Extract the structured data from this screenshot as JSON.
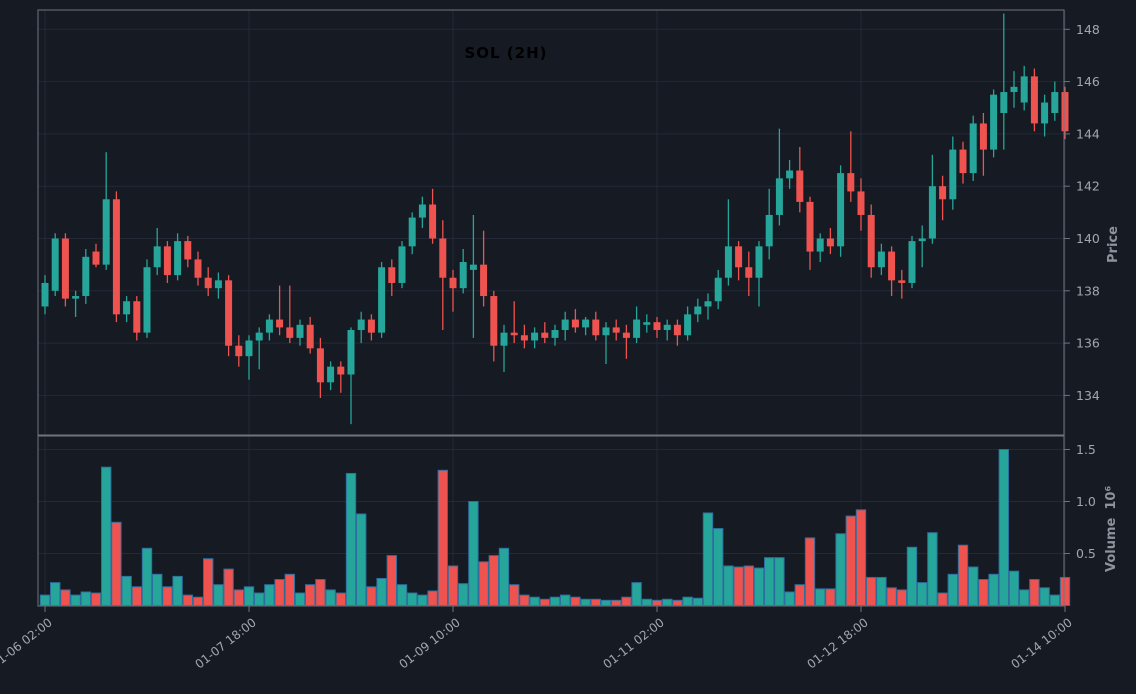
{
  "title": "SOL (2H)",
  "chart_data": {
    "type": "candlestick",
    "symbol": "SOL",
    "timeframe": "2H",
    "title": "SOL (2H)",
    "legend_position": "none",
    "grid": true,
    "price_axis": {
      "label": "Price",
      "side": "right",
      "ticks": [
        134,
        136,
        138,
        140,
        142,
        144,
        146,
        148
      ],
      "range": [
        132.5,
        148.75
      ]
    },
    "volume_axis": {
      "label": "Volume",
      "scale": "10⁶",
      "side": "right",
      "ticks": [
        "0.5",
        "1.0",
        "1.5"
      ],
      "tick_values": [
        0.5,
        1.0,
        1.5
      ],
      "range": [
        0,
        1.63
      ]
    },
    "x_ticks": [
      {
        "label": "01-06 02:00",
        "index": 0
      },
      {
        "label": "01-07 18:00",
        "index": 20
      },
      {
        "label": "01-09 10:00",
        "index": 40
      },
      {
        "label": "01-11 02:00",
        "index": 60
      },
      {
        "label": "01-12 18:00",
        "index": 80
      },
      {
        "label": "01-14 10:00",
        "index": 100
      }
    ],
    "interval_hours": 2,
    "volume_unit": 1000000,
    "colors": {
      "up": "#26a69a",
      "down": "#ef5350",
      "volume_edge": "#2e6f9f",
      "background": "#151a23",
      "grid": "#232937",
      "spine": "#6e747d",
      "tick_text": "#a2a7af",
      "title_text": "#000000",
      "axis_label_text": "#8d939c"
    },
    "candles_format": [
      "open",
      "high",
      "low",
      "close",
      "volume_millions"
    ],
    "candles": [
      [
        137.4,
        138.6,
        137.1,
        138.3,
        0.1
      ],
      [
        138.0,
        140.2,
        137.8,
        140.0,
        0.22
      ],
      [
        140.0,
        140.2,
        137.4,
        137.7,
        0.15
      ],
      [
        137.7,
        138.0,
        137.0,
        137.8,
        0.1
      ],
      [
        137.8,
        139.6,
        137.5,
        139.3,
        0.13
      ],
      [
        139.5,
        139.8,
        138.9,
        139.0,
        0.12
      ],
      [
        139.0,
        143.3,
        138.8,
        141.5,
        1.33
      ],
      [
        141.5,
        141.8,
        136.8,
        137.1,
        0.8
      ],
      [
        137.1,
        137.8,
        136.8,
        137.6,
        0.28
      ],
      [
        137.6,
        137.8,
        136.1,
        136.4,
        0.18
      ],
      [
        136.4,
        139.2,
        136.2,
        138.9,
        0.55
      ],
      [
        138.9,
        140.4,
        138.6,
        139.7,
        0.3
      ],
      [
        139.7,
        139.9,
        138.3,
        138.6,
        0.18
      ],
      [
        138.6,
        140.2,
        138.4,
        139.9,
        0.28
      ],
      [
        139.9,
        140.1,
        138.9,
        139.2,
        0.1
      ],
      [
        139.2,
        139.5,
        138.2,
        138.5,
        0.08
      ],
      [
        138.5,
        138.9,
        137.8,
        138.1,
        0.45
      ],
      [
        138.1,
        138.7,
        137.7,
        138.4,
        0.2
      ],
      [
        138.4,
        138.6,
        135.5,
        135.9,
        0.35
      ],
      [
        135.9,
        136.3,
        135.1,
        135.5,
        0.15
      ],
      [
        135.5,
        136.3,
        134.6,
        136.1,
        0.18
      ],
      [
        136.1,
        136.6,
        135.0,
        136.4,
        0.12
      ],
      [
        136.4,
        137.1,
        136.1,
        136.9,
        0.2
      ],
      [
        136.9,
        138.2,
        136.3,
        136.6,
        0.25
      ],
      [
        136.6,
        138.2,
        136.0,
        136.2,
        0.3
      ],
      [
        136.2,
        136.9,
        135.9,
        136.7,
        0.12
      ],
      [
        136.7,
        137.0,
        135.6,
        135.8,
        0.2
      ],
      [
        135.8,
        136.2,
        133.9,
        134.5,
        0.25
      ],
      [
        134.5,
        135.3,
        134.2,
        135.1,
        0.15
      ],
      [
        135.1,
        135.3,
        134.1,
        134.8,
        0.12
      ],
      [
        134.8,
        136.6,
        132.9,
        136.5,
        1.27
      ],
      [
        136.5,
        137.2,
        136.0,
        136.9,
        0.88
      ],
      [
        136.9,
        137.1,
        136.1,
        136.4,
        0.18
      ],
      [
        136.4,
        139.1,
        136.2,
        138.9,
        0.26
      ],
      [
        138.9,
        139.2,
        137.8,
        138.3,
        0.48
      ],
      [
        138.3,
        139.9,
        138.1,
        139.7,
        0.2
      ],
      [
        139.7,
        141.0,
        139.4,
        140.8,
        0.12
      ],
      [
        140.8,
        141.6,
        140.4,
        141.3,
        0.1
      ],
      [
        141.3,
        141.9,
        139.8,
        140.0,
        0.14
      ],
      [
        140.0,
        140.7,
        136.5,
        138.5,
        1.3
      ],
      [
        138.5,
        138.8,
        137.2,
        138.1,
        0.38
      ],
      [
        138.1,
        139.6,
        137.9,
        139.1,
        0.21
      ],
      [
        138.8,
        140.9,
        136.2,
        139.0,
        1.0
      ],
      [
        139.0,
        140.3,
        137.4,
        137.8,
        0.42
      ],
      [
        137.8,
        138.0,
        135.3,
        135.9,
        0.48
      ],
      [
        135.9,
        136.7,
        134.9,
        136.4,
        0.55
      ],
      [
        136.4,
        137.6,
        136.0,
        136.3,
        0.2
      ],
      [
        136.3,
        136.7,
        135.8,
        136.1,
        0.1
      ],
      [
        136.1,
        136.6,
        135.8,
        136.4,
        0.08
      ],
      [
        136.4,
        136.8,
        136.0,
        136.2,
        0.06
      ],
      [
        136.2,
        136.7,
        135.9,
        136.5,
        0.08
      ],
      [
        136.5,
        137.2,
        136.1,
        136.9,
        0.1
      ],
      [
        136.9,
        137.3,
        136.4,
        136.6,
        0.08
      ],
      [
        136.6,
        137.0,
        136.3,
        136.9,
        0.06
      ],
      [
        136.9,
        137.2,
        136.1,
        136.3,
        0.06
      ],
      [
        136.3,
        136.8,
        135.2,
        136.6,
        0.05
      ],
      [
        136.6,
        136.9,
        136.1,
        136.4,
        0.05
      ],
      [
        136.4,
        136.7,
        135.4,
        136.2,
        0.08
      ],
      [
        136.2,
        137.4,
        136.0,
        136.9,
        0.22
      ],
      [
        136.7,
        137.1,
        136.4,
        136.8,
        0.06
      ],
      [
        136.8,
        137.0,
        136.2,
        136.5,
        0.05
      ],
      [
        136.5,
        136.9,
        136.1,
        136.7,
        0.06
      ],
      [
        136.7,
        136.9,
        135.9,
        136.3,
        0.05
      ],
      [
        136.3,
        137.4,
        136.1,
        137.1,
        0.08
      ],
      [
        137.1,
        137.7,
        136.8,
        137.4,
        0.07
      ],
      [
        137.4,
        137.9,
        136.9,
        137.6,
        0.89
      ],
      [
        137.6,
        138.8,
        137.3,
        138.5,
        0.74
      ],
      [
        138.5,
        141.5,
        138.2,
        139.7,
        0.38
      ],
      [
        139.7,
        139.9,
        138.4,
        138.9,
        0.37
      ],
      [
        138.9,
        139.5,
        137.8,
        138.5,
        0.38
      ],
      [
        138.5,
        139.9,
        137.4,
        139.7,
        0.36
      ],
      [
        139.7,
        141.9,
        139.2,
        140.9,
        0.46
      ],
      [
        140.9,
        144.2,
        140.5,
        142.3,
        0.46
      ],
      [
        142.3,
        143.0,
        141.9,
        142.6,
        0.13
      ],
      [
        142.6,
        143.5,
        141.0,
        141.4,
        0.2
      ],
      [
        141.4,
        141.6,
        138.8,
        139.5,
        0.65
      ],
      [
        139.5,
        140.2,
        139.1,
        140.0,
        0.16
      ],
      [
        140.0,
        140.4,
        139.4,
        139.7,
        0.16
      ],
      [
        139.7,
        142.8,
        139.3,
        142.5,
        0.69
      ],
      [
        142.5,
        144.1,
        141.4,
        141.8,
        0.86
      ],
      [
        141.8,
        142.3,
        140.3,
        140.9,
        0.92
      ],
      [
        140.9,
        141.3,
        138.5,
        138.9,
        0.27
      ],
      [
        138.9,
        139.8,
        138.6,
        139.5,
        0.27
      ],
      [
        139.5,
        139.7,
        137.8,
        138.4,
        0.17
      ],
      [
        138.4,
        138.8,
        137.7,
        138.3,
        0.15
      ],
      [
        138.3,
        140.1,
        138.1,
        139.9,
        0.56
      ],
      [
        139.9,
        140.5,
        138.9,
        140.0,
        0.22
      ],
      [
        140.0,
        143.2,
        139.8,
        142.0,
        0.7
      ],
      [
        142.0,
        142.4,
        140.7,
        141.5,
        0.12
      ],
      [
        141.5,
        143.9,
        141.1,
        143.4,
        0.3
      ],
      [
        143.4,
        143.7,
        142.1,
        142.5,
        0.58
      ],
      [
        142.5,
        144.7,
        142.2,
        144.4,
        0.37
      ],
      [
        144.4,
        144.8,
        142.4,
        143.4,
        0.25
      ],
      [
        143.4,
        145.7,
        143.1,
        145.5,
        0.3
      ],
      [
        144.8,
        148.6,
        143.4,
        145.6,
        1.5
      ],
      [
        145.6,
        146.4,
        145.0,
        145.8,
        0.33
      ],
      [
        145.2,
        146.6,
        144.9,
        146.2,
        0.15
      ],
      [
        146.2,
        146.5,
        144.1,
        144.4,
        0.25
      ],
      [
        144.4,
        145.5,
        143.9,
        145.2,
        0.17
      ],
      [
        144.8,
        146.0,
        144.5,
        145.6,
        0.1
      ],
      [
        145.6,
        145.8,
        143.8,
        144.1,
        0.27
      ]
    ]
  }
}
